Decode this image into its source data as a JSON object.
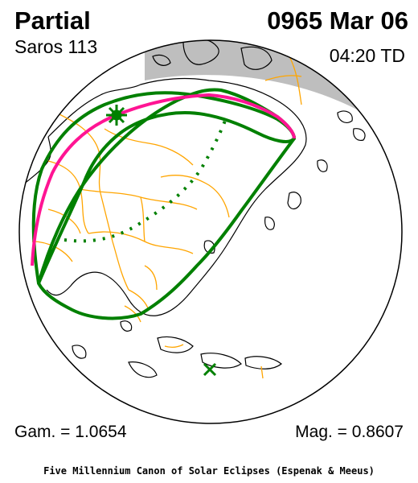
{
  "header": {
    "eclipse_type": "Partial",
    "date": "0965 Mar 06",
    "saros": "Saros 113",
    "time": "04:20 TD"
  },
  "footer": {
    "gamma": "Gam. = 1.0654",
    "magnitude": "Mag. = 0.8607",
    "credit": "Five Millennium Canon of Solar Eclipses (Espenak & Meeus)"
  },
  "colors": {
    "globe_outline": "#000000",
    "night_shading": "#bebebe",
    "coastlines": "#000000",
    "borders": "#ffa500",
    "penumbral_limits": "#008000",
    "max_eclipse_curve": "#ff1493",
    "greatest_eclipse_marker": "#008000"
  },
  "markers": {
    "greatest_eclipse": "star-burst-icon",
    "sub_solar_point": "x-mark-icon"
  }
}
